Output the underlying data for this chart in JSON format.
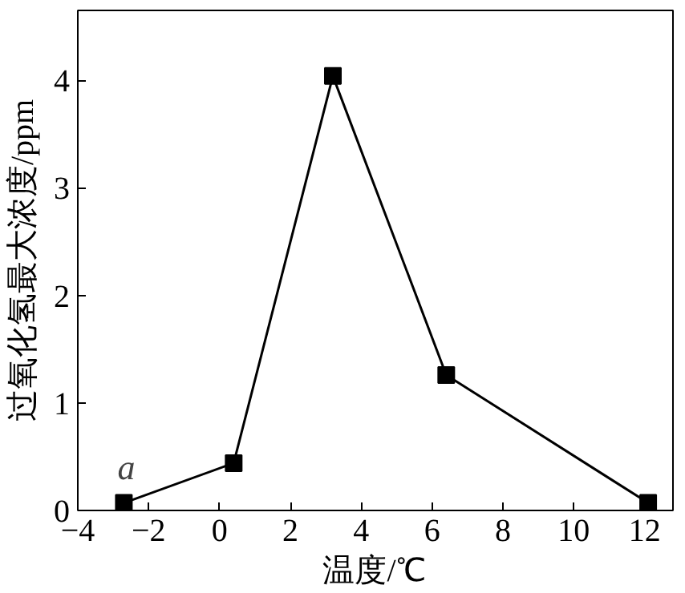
{
  "chart_data": {
    "type": "line",
    "xlabel": "温度/℃",
    "ylabel": "过氧化氢最大浓度/ppm",
    "x": [
      -2.7,
      0.4,
      3.2,
      6.4,
      12.1
    ],
    "series": [
      {
        "color": "#000000",
        "values": [
          0.07,
          0.44,
          4.04,
          1.26,
          0.07
        ]
      }
    ],
    "xlim": [
      -4,
      12.8
    ],
    "ylim": [
      0,
      4.65
    ],
    "xticks": [
      -4,
      -2,
      0,
      2,
      4,
      6,
      8,
      10,
      12
    ],
    "yticks": [
      0,
      1,
      2,
      3,
      4
    ],
    "marker": "square",
    "line_style": "solid",
    "grid": false,
    "annotations": [
      {
        "text": "a",
        "x": -2.7,
        "y": 0.07
      }
    ]
  }
}
